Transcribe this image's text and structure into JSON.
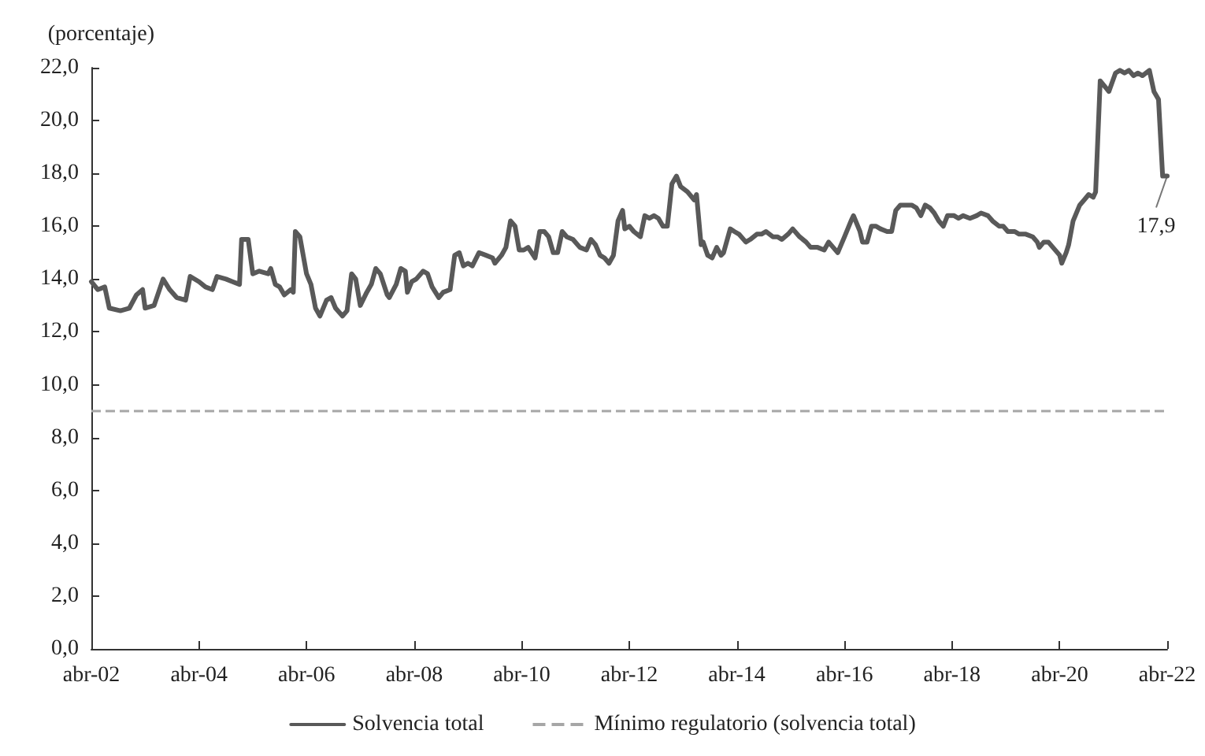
{
  "chart_data": {
    "type": "line",
    "ylabel": "(porcentaje)",
    "x": [
      "2002-04-01",
      "2002-05-15",
      "2002-07-01",
      "2002-08-01",
      "2002-10-15",
      "2002-12-15",
      "2003-02-01",
      "2003-03-15",
      "2003-04-01",
      "2003-06-01",
      "2003-08-01",
      "2003-09-15",
      "2003-11-01",
      "2004-01-01",
      "2004-02-01",
      "2004-04-01",
      "2004-05-15",
      "2004-07-01",
      "2004-08-01",
      "2004-10-01",
      "2004-11-15",
      "2005-01-01",
      "2005-01-15",
      "2005-03-01",
      "2005-04-01",
      "2005-05-15",
      "2005-07-15",
      "2005-08-01",
      "2005-09-01",
      "2005-10-01",
      "2005-11-01",
      "2005-12-15",
      "2006-01-01",
      "2006-01-15",
      "2006-02-15",
      "2006-04-01",
      "2006-05-01",
      "2006-06-01",
      "2006-07-01",
      "2006-08-15",
      "2006-09-15",
      "2006-10-15",
      "2006-12-01",
      "2007-01-01",
      "2007-02-01",
      "2007-03-01",
      "2007-04-01",
      "2007-05-15",
      "2007-06-15",
      "2007-07-15",
      "2007-08-15",
      "2007-10-01",
      "2007-10-15",
      "2007-12-01",
      "2008-01-01",
      "2008-02-01",
      "2008-02-15",
      "2008-03-15",
      "2008-04-15",
      "2008-06-01",
      "2008-07-01",
      "2008-08-01",
      "2008-09-15",
      "2008-10-15",
      "2008-12-01",
      "2009-01-01",
      "2009-02-01",
      "2009-03-01",
      "2009-04-01",
      "2009-05-01",
      "2009-06-15",
      "2009-08-01",
      "2009-09-15",
      "2009-10-01",
      "2009-11-15",
      "2009-12-15",
      "2010-01-15",
      "2010-02-15",
      "2010-03-15",
      "2010-04-15",
      "2010-05-15",
      "2010-07-01",
      "2010-08-01",
      "2010-09-01",
      "2010-10-01",
      "2010-11-01",
      "2010-12-01",
      "2011-01-01",
      "2011-02-01",
      "2011-03-15",
      "2011-05-01",
      "2011-06-15",
      "2011-07-15",
      "2011-08-15",
      "2011-09-15",
      "2011-10-15",
      "2011-11-15",
      "2011-12-15",
      "2012-01-15",
      "2012-02-15",
      "2012-03-01",
      "2012-04-01",
      "2012-05-01",
      "2012-06-15",
      "2012-07-15",
      "2012-08-15",
      "2012-09-15",
      "2012-10-15",
      "2012-11-15",
      "2012-12-15",
      "2013-01-15",
      "2013-02-15",
      "2013-03-15",
      "2013-05-01",
      "2013-06-15",
      "2013-07-01",
      "2013-08-01",
      "2013-08-15",
      "2013-09-15",
      "2013-10-15",
      "2013-11-15",
      "2013-12-15",
      "2014-01-01",
      "2014-02-15",
      "2014-03-15",
      "2014-04-15",
      "2014-06-01",
      "2014-07-01",
      "2014-08-15",
      "2014-09-15",
      "2014-10-15",
      "2014-12-01",
      "2015-01-01",
      "2015-02-01",
      "2015-03-15",
      "2015-04-15",
      "2015-06-01",
      "2015-07-15",
      "2015-08-15",
      "2015-10-01",
      "2015-11-15",
      "2015-12-15",
      "2016-01-15",
      "2016-02-15",
      "2016-04-01",
      "2016-05-15",
      "2016-06-01",
      "2016-07-15",
      "2016-08-01",
      "2016-09-01",
      "2016-10-01",
      "2016-11-01",
      "2016-12-01",
      "2017-01-15",
      "2017-02-15",
      "2017-03-15",
      "2017-04-15",
      "2017-06-01",
      "2017-07-01",
      "2017-08-01",
      "2017-09-01",
      "2017-10-01",
      "2017-11-01",
      "2017-12-01",
      "2018-01-01",
      "2018-02-01",
      "2018-03-01",
      "2018-04-15",
      "2018-05-15",
      "2018-06-15",
      "2018-08-01",
      "2018-09-15",
      "2018-10-15",
      "2018-12-01",
      "2019-01-01",
      "2019-02-15",
      "2019-03-15",
      "2019-04-15",
      "2019-06-01",
      "2019-07-01",
      "2019-08-15",
      "2019-10-01",
      "2019-11-01",
      "2019-11-15",
      "2019-12-15",
      "2020-01-15",
      "2020-02-15",
      "2020-04-01",
      "2020-04-15",
      "2020-05-15",
      "2020-06-01",
      "2020-07-01",
      "2020-08-15",
      "2020-09-15",
      "2020-10-15",
      "2020-11-15",
      "2020-12-01",
      "2021-01-01",
      "2021-02-15",
      "2021-03-01",
      "2021-04-15",
      "2021-05-15",
      "2021-06-15",
      "2021-07-15",
      "2021-08-15",
      "2021-09-15",
      "2021-10-15",
      "2021-12-01",
      "2022-01-01",
      "2022-02-01",
      "2022-03-01",
      "2022-04-01"
    ],
    "series": [
      {
        "name": "Solvencia total",
        "color": "#595959",
        "values": [
          13.9,
          13.6,
          13.7,
          12.9,
          12.8,
          12.9,
          13.4,
          13.6,
          12.9,
          13.0,
          14.0,
          13.6,
          13.3,
          13.2,
          14.1,
          13.9,
          13.7,
          13.6,
          14.1,
          14.0,
          13.9,
          13.8,
          15.5,
          15.5,
          14.2,
          14.3,
          14.2,
          14.4,
          13.8,
          13.7,
          13.4,
          13.6,
          13.5,
          15.8,
          15.6,
          14.2,
          13.8,
          12.9,
          12.6,
          13.2,
          13.3,
          12.9,
          12.6,
          12.8,
          14.2,
          14.0,
          13.0,
          13.5,
          13.8,
          14.4,
          14.2,
          13.4,
          13.3,
          13.8,
          14.4,
          14.3,
          13.5,
          13.9,
          14.0,
          14.3,
          14.2,
          13.7,
          13.3,
          13.5,
          13.6,
          14.9,
          15.0,
          14.5,
          14.6,
          14.5,
          15.0,
          14.9,
          14.8,
          14.6,
          14.9,
          15.2,
          16.2,
          16.0,
          15.1,
          15.1,
          15.2,
          14.8,
          15.8,
          15.8,
          15.6,
          15.0,
          15.0,
          15.8,
          15.6,
          15.5,
          15.2,
          15.1,
          15.5,
          15.3,
          14.9,
          14.8,
          14.6,
          14.9,
          16.2,
          16.6,
          15.9,
          16.0,
          15.8,
          15.6,
          16.4,
          16.3,
          16.4,
          16.3,
          16.0,
          16.0,
          17.6,
          17.9,
          17.5,
          17.3,
          17.0,
          17.2,
          15.3,
          15.4,
          14.9,
          14.8,
          15.2,
          14.9,
          15.0,
          15.9,
          15.8,
          15.7,
          15.4,
          15.5,
          15.7,
          15.7,
          15.8,
          15.6,
          15.6,
          15.5,
          15.7,
          15.9,
          15.6,
          15.4,
          15.2,
          15.2,
          15.1,
          15.4,
          15.2,
          15.0,
          15.6,
          16.2,
          16.4,
          15.8,
          15.4,
          15.4,
          16.0,
          16.0,
          15.9,
          15.8,
          15.8,
          16.6,
          16.8,
          16.8,
          16.8,
          16.7,
          16.4,
          16.8,
          16.7,
          16.5,
          16.2,
          16.0,
          16.4,
          16.4,
          16.3,
          16.4,
          16.3,
          16.4,
          16.5,
          16.4,
          16.2,
          16.0,
          16.0,
          15.8,
          15.8,
          15.7,
          15.7,
          15.6,
          15.4,
          15.2,
          15.4,
          15.4,
          15.2,
          14.9,
          14.6,
          15.0,
          15.3,
          16.2,
          16.8,
          17.0,
          17.2,
          17.1,
          17.3,
          21.5,
          21.2,
          21.1,
          21.8,
          21.9,
          21.8,
          21.9,
          21.7,
          21.8,
          21.7,
          21.9,
          21.1,
          20.8,
          17.9,
          17.9
        ]
      }
    ],
    "xlim": [
      "2002-04-01",
      "2022-04-01"
    ],
    "xticks": [
      {
        "value": "2002-04-01",
        "label": "abr-02"
      },
      {
        "value": "2004-04-01",
        "label": "abr-04"
      },
      {
        "value": "2006-04-01",
        "label": "abr-06"
      },
      {
        "value": "2008-04-01",
        "label": "abr-08"
      },
      {
        "value": "2010-04-01",
        "label": "abr-10"
      },
      {
        "value": "2012-04-01",
        "label": "abr-12"
      },
      {
        "value": "2014-04-01",
        "label": "abr-14"
      },
      {
        "value": "2016-04-01",
        "label": "abr-16"
      },
      {
        "value": "2018-04-01",
        "label": "abr-18"
      },
      {
        "value": "2020-04-01",
        "label": "abr-20"
      },
      {
        "value": "2022-04-01",
        "label": "abr-22"
      }
    ],
    "ylim": [
      0,
      22
    ],
    "yticks": [
      {
        "value": 0,
        "label": "0,0"
      },
      {
        "value": 2,
        "label": "2,0"
      },
      {
        "value": 4,
        "label": "4,0"
      },
      {
        "value": 6,
        "label": "6,0"
      },
      {
        "value": 8,
        "label": "8,0"
      },
      {
        "value": 10,
        "label": "10,0"
      },
      {
        "value": 12,
        "label": "12,0"
      },
      {
        "value": 14,
        "label": "14,0"
      },
      {
        "value": 16,
        "label": "16,0"
      },
      {
        "value": 18,
        "label": "18,0"
      },
      {
        "value": 20,
        "label": "20,0"
      },
      {
        "value": 22,
        "label": "22,0"
      }
    ],
    "ref_lines": [
      {
        "axis": "y",
        "value": 9,
        "label": "Mínimo regulatorio (solvencia total)",
        "color": "#a6a6a6",
        "line_style": "dashed"
      }
    ],
    "annotations": [
      {
        "text": "17,9",
        "x": "2022-04-01",
        "y": 17.9
      }
    ],
    "grid": false,
    "legend": "bottom",
    "marker": "none",
    "line_style": "solid"
  }
}
